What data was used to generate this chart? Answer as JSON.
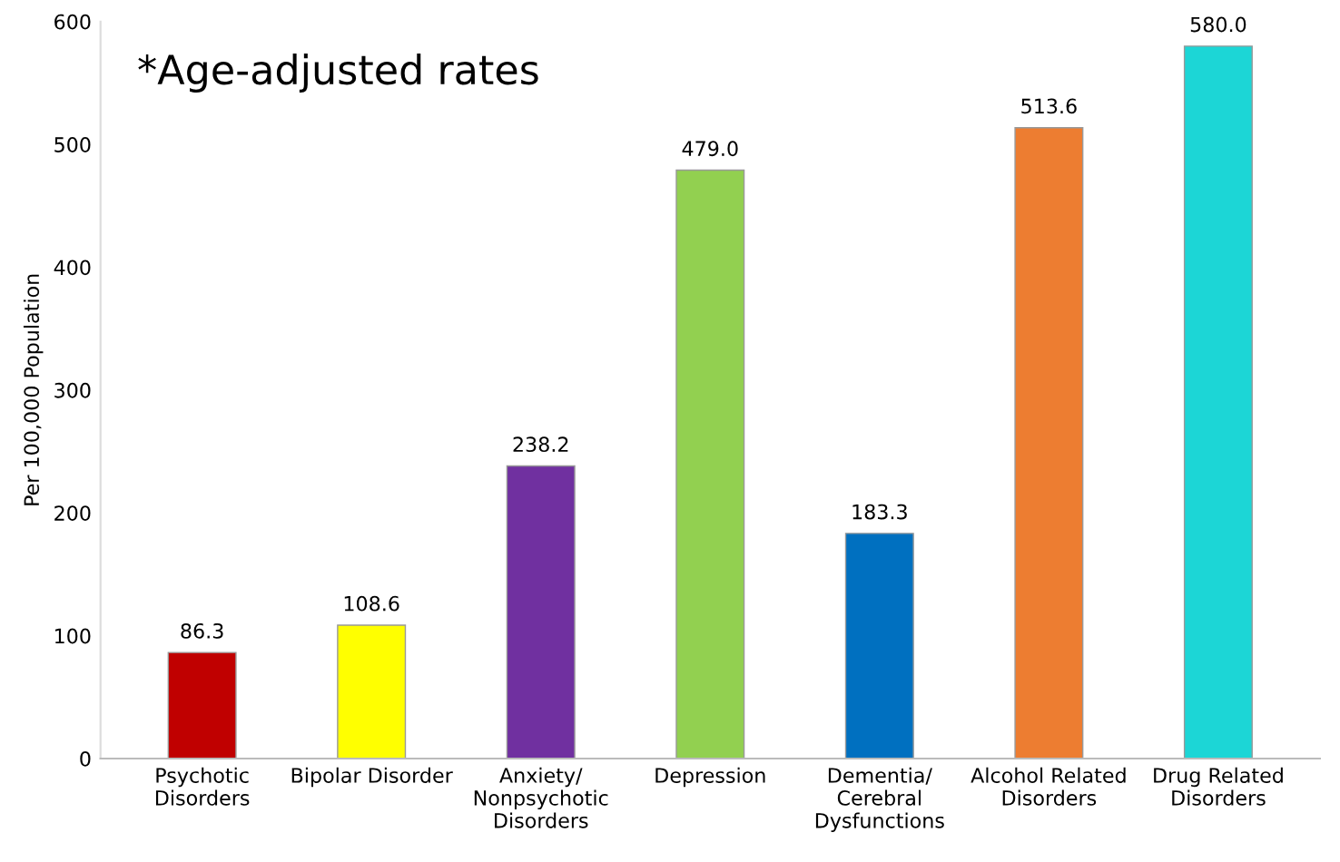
{
  "chart_data": {
    "type": "bar",
    "categories": [
      "Psychotic\nDisorders",
      "Bipolar Disorder",
      "Anxiety/\nNonpsychotic\nDisorders",
      "Depression",
      "Dementia/\nCerebral\nDysfunctions",
      "Alcohol Related\nDisorders",
      "Drug Related\nDisorders"
    ],
    "values": [
      86.3,
      108.6,
      238.2,
      479.0,
      183.3,
      513.6,
      580.0
    ],
    "value_labels": [
      "86.3",
      "108.6",
      "238.2",
      "479.0",
      "183.3",
      "513.6",
      "580.0"
    ],
    "colors": [
      "#c00000",
      "#ffff00",
      "#7030a0",
      "#92d050",
      "#0070c0",
      "#ed7d31",
      "#1cd6d6"
    ],
    "ylabel": "Per 100,000 Population",
    "ylim": [
      0,
      600
    ],
    "yticks": [
      0,
      100,
      200,
      300,
      400,
      500,
      600
    ],
    "annotations": [
      "*Age-adjusted rates"
    ],
    "grid": false,
    "legend": false
  }
}
